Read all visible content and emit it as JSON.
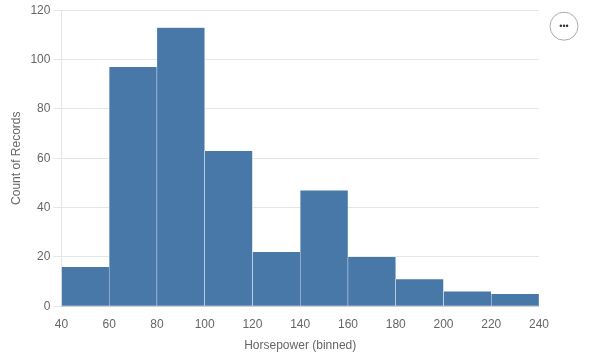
{
  "chart_data": {
    "type": "histogram",
    "bins": [
      40,
      60,
      80,
      100,
      120,
      140,
      160,
      180,
      200,
      220,
      240
    ],
    "values": [
      16,
      97,
      113,
      63,
      22,
      47,
      20,
      11,
      6,
      5
    ],
    "color": "#4878a8",
    "x_label": "Horsepower (binned)",
    "y_label": "Count of Records",
    "xlim": [
      40,
      240
    ],
    "ylim": [
      0,
      120
    ],
    "xticks": [
      40,
      60,
      80,
      100,
      120,
      140,
      160,
      180,
      200,
      220,
      240
    ],
    "yticks": [
      0,
      20,
      40,
      60,
      80,
      100,
      120
    ],
    "grid": true,
    "annotations": [
      "•••"
    ]
  }
}
